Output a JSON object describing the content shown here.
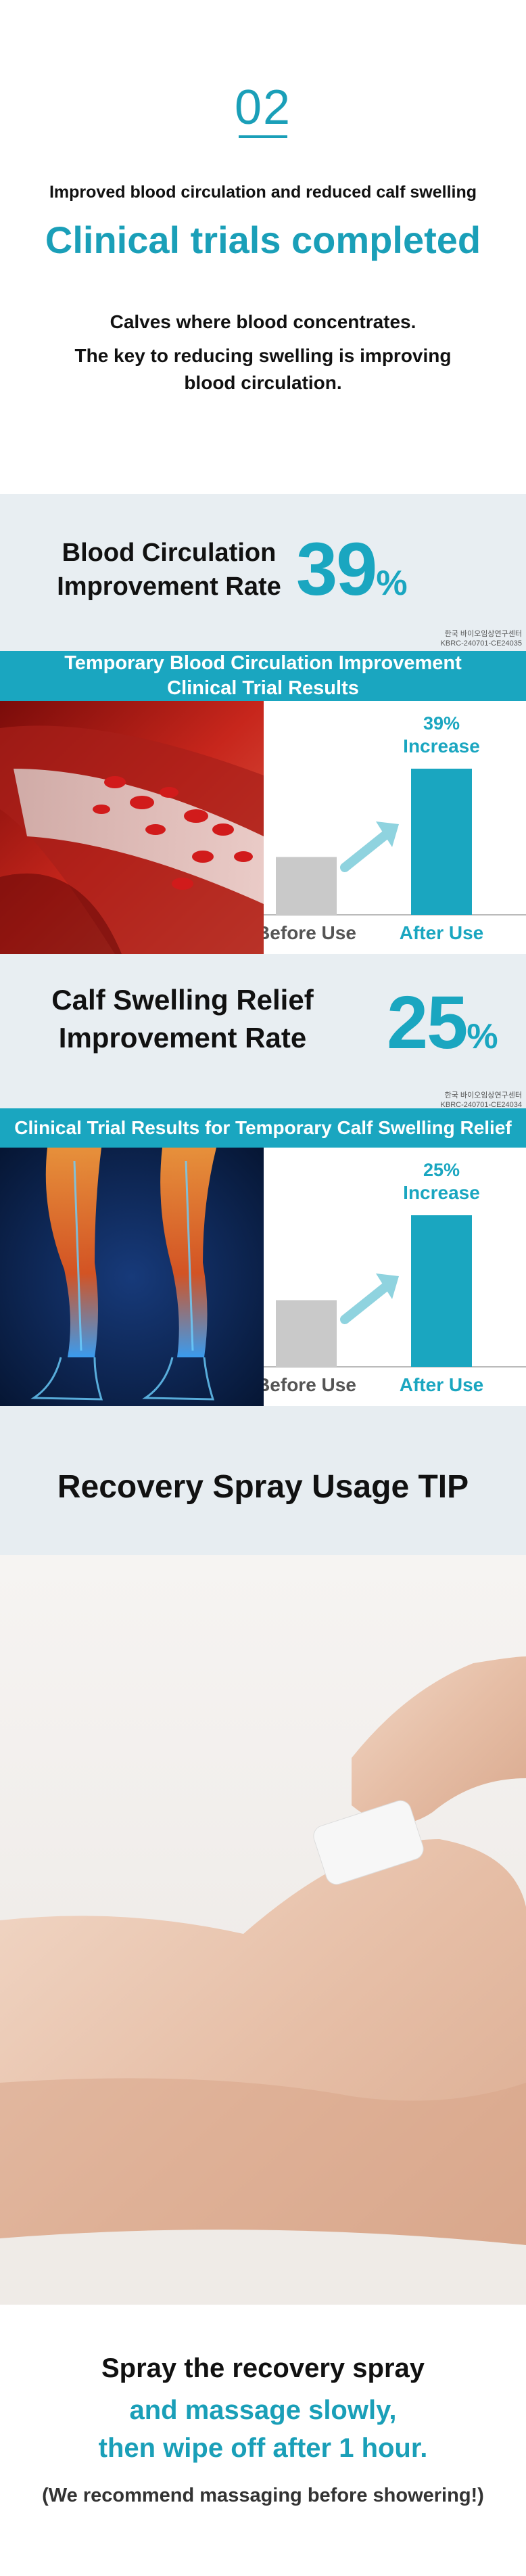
{
  "intro": {
    "step_number": "02",
    "subtitle": "Improved blood circulation and reduced calf swelling",
    "title": "Clinical trials completed",
    "desc_line1": "Calves where blood concentrates.",
    "desc_line2": "The key to reducing swelling is improving",
    "desc_line3": "blood circulation."
  },
  "circulation": {
    "label_line1": "Blood Circulation",
    "label_line2": "Improvement Rate",
    "value": "39",
    "unit": "%",
    "code_line1": "한국 바이오임상연구센터",
    "code_line2": "KBRC-240701-CE24035",
    "banner_line1": "Temporary Blood Circulation Improvement",
    "banner_line2": "Clinical Trial Results",
    "increase_value": "39%",
    "increase_label": "Increase",
    "before_label": "Before Use",
    "after_label": "After Use",
    "image_icon": "blood-vessel-illustration"
  },
  "swelling": {
    "label_line1": "Calf Swelling Relief",
    "label_line2": "Improvement Rate",
    "value": "25",
    "unit": "%",
    "code_line1": "한국 바이오임상연구센터",
    "code_line2": "KBRC-240701-CE24034",
    "banner": "Clinical Trial Results for Temporary Calf Swelling Relief",
    "increase_value": "25%",
    "increase_label": "Increase",
    "before_label": "Before Use",
    "after_label": "After Use",
    "image_icon": "leg-muscle-xray-illustration"
  },
  "chart_data": [
    {
      "type": "bar",
      "categories": [
        "Before Use",
        "After Use"
      ],
      "values": [
        1.0,
        1.39
      ],
      "title": "Temporary Blood Circulation Improvement Clinical Trial Results",
      "annotation": "39% Increase"
    },
    {
      "type": "bar",
      "categories": [
        "Before Use",
        "After Use"
      ],
      "values": [
        1.0,
        1.25
      ],
      "title": "Clinical Trial Results for Temporary Calf Swelling Relief",
      "annotation": "25% Increase"
    }
  ],
  "tip": {
    "title": "Recovery Spray Usage TIP",
    "photo_icon": "hand-spraying-leg-photo",
    "line1": "Spray the recovery spray",
    "line2": "and massage slowly,",
    "line3": "then wipe off after 1 hour.",
    "note": "(We recommend massaging before showering!)"
  },
  "colors": {
    "accent": "#1aa6c0",
    "before_bar": "#c9c9c9",
    "after_bar": "#1aa6c0",
    "band_bg": "#e8eef2"
  }
}
